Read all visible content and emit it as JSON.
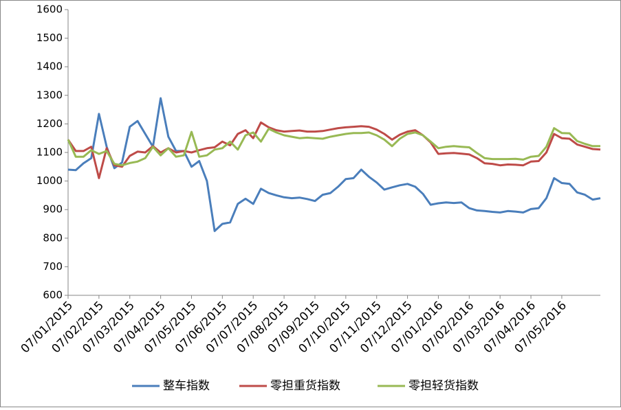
{
  "chart_data": {
    "type": "line",
    "categories": [
      "07/01/2015",
      null,
      null,
      null,
      "07/02/2015",
      null,
      null,
      null,
      "07/03/2015",
      null,
      null,
      null,
      "07/04/2015",
      null,
      null,
      null,
      "07/05/2015",
      null,
      null,
      null,
      "07/06/2015",
      null,
      null,
      null,
      "07/07/2015",
      null,
      null,
      null,
      "07/08/2015",
      null,
      null,
      null,
      "07/09/2015",
      null,
      null,
      null,
      "07/10/2015",
      null,
      null,
      null,
      "07/11/2015",
      null,
      null,
      null,
      "07/12/2015",
      null,
      null,
      null,
      "07/01/2016",
      null,
      null,
      null,
      "07/02/2016",
      null,
      null,
      null,
      "07/03/2016",
      null,
      null,
      null,
      "07/04/2016",
      null,
      null,
      null,
      "07/05/2016",
      null,
      null,
      null,
      null,
      null
    ],
    "series": [
      {
        "name": "整车指数",
        "color": "#4a7ebb",
        "values": [
          1040,
          1038,
          1062,
          1080,
          1235,
          1120,
          1045,
          1065,
          1190,
          1210,
          1165,
          1120,
          1290,
          1155,
          1105,
          1105,
          1050,
          1070,
          1000,
          825,
          850,
          855,
          920,
          938,
          920,
          973,
          958,
          950,
          943,
          940,
          942,
          937,
          930,
          952,
          958,
          980,
          1007,
          1010,
          1040,
          1015,
          995,
          970,
          978,
          985,
          990,
          980,
          955,
          917,
          922,
          925,
          923,
          925,
          905,
          897,
          895,
          892,
          890,
          895,
          893,
          890,
          902,
          905,
          940,
          1010,
          993,
          990,
          960,
          952,
          935,
          940
        ]
      },
      {
        "name": "零担重货指数",
        "color": "#be4b48",
        "values": [
          1145,
          1105,
          1105,
          1120,
          1010,
          1115,
          1055,
          1050,
          1088,
          1103,
          1100,
          1122,
          1100,
          1115,
          1100,
          1105,
          1100,
          1108,
          1115,
          1118,
          1138,
          1125,
          1165,
          1178,
          1150,
          1205,
          1188,
          1178,
          1173,
          1175,
          1177,
          1173,
          1173,
          1175,
          1180,
          1185,
          1188,
          1190,
          1192,
          1190,
          1180,
          1165,
          1145,
          1162,
          1173,
          1178,
          1160,
          1135,
          1095,
          1097,
          1098,
          1096,
          1093,
          1080,
          1062,
          1060,
          1055,
          1058,
          1057,
          1055,
          1068,
          1070,
          1100,
          1165,
          1150,
          1148,
          1128,
          1120,
          1112,
          1110
        ]
      },
      {
        "name": "零担轻货指数",
        "color": "#98b954",
        "values": [
          1145,
          1085,
          1085,
          1108,
          1095,
          1105,
          1060,
          1055,
          1063,
          1068,
          1080,
          1120,
          1090,
          1115,
          1085,
          1090,
          1172,
          1085,
          1090,
          1110,
          1115,
          1138,
          1110,
          1160,
          1170,
          1138,
          1183,
          1170,
          1160,
          1155,
          1150,
          1152,
          1150,
          1148,
          1155,
          1160,
          1165,
          1168,
          1168,
          1170,
          1160,
          1145,
          1122,
          1148,
          1165,
          1170,
          1160,
          1138,
          1115,
          1120,
          1122,
          1120,
          1118,
          1098,
          1080,
          1077,
          1077,
          1077,
          1078,
          1075,
          1085,
          1088,
          1120,
          1185,
          1168,
          1167,
          1140,
          1130,
          1122,
          1122
        ]
      }
    ],
    "ylim": [
      600,
      1600
    ],
    "yticks": [
      600,
      700,
      800,
      900,
      1000,
      1100,
      1200,
      1300,
      1400,
      1500,
      1600
    ],
    "grid": false,
    "legend": "bottom"
  }
}
